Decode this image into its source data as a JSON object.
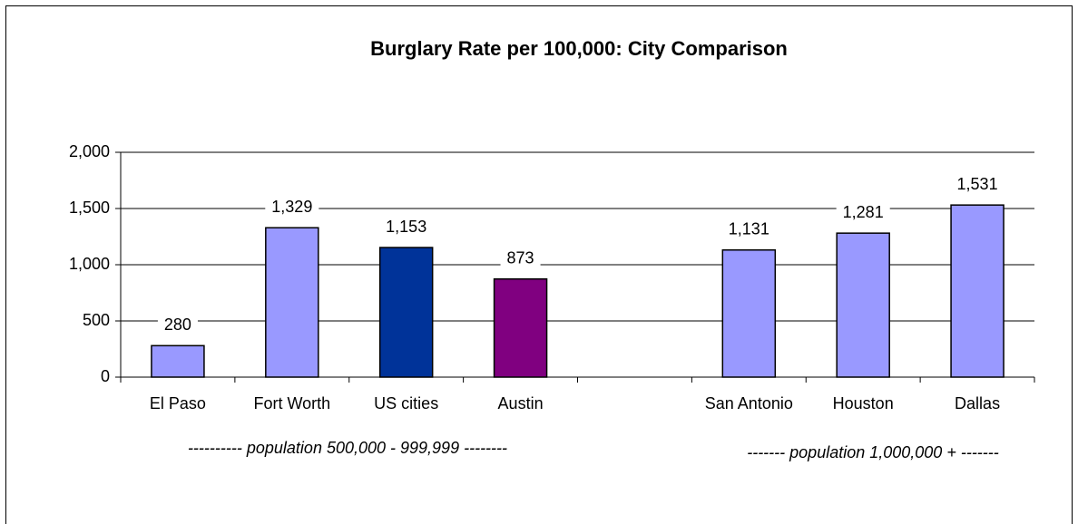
{
  "chart_data": {
    "type": "bar",
    "title": "Burglary Rate per 100,000: City Comparison",
    "categories": [
      "El Paso",
      "Fort Worth",
      "US cities",
      "Austin",
      null,
      "San Antonio",
      "Houston",
      "Dallas"
    ],
    "values": [
      280,
      1329,
      1153,
      873,
      null,
      1131,
      1281,
      1531
    ],
    "value_labels": [
      "280",
      "1,329",
      "1,153",
      "873",
      null,
      "1,131",
      "1,281",
      "1,531"
    ],
    "colors": [
      "#9999ff",
      "#9999ff",
      "#003399",
      "#800080",
      null,
      "#9999ff",
      "#9999ff",
      "#9999ff"
    ],
    "ylim": [
      0,
      2000
    ],
    "yticks": [
      0,
      500,
      {
        "value": 1000,
        "label": "1,000"
      },
      {
        "value": 1500,
        "label": "1,500"
      },
      {
        "value": 2000,
        "label": "2,000"
      }
    ],
    "grid": true,
    "annotations": [
      "---------- population 500,000 - 999,999 --------",
      "------- population 1,000,000 + -------"
    ]
  }
}
